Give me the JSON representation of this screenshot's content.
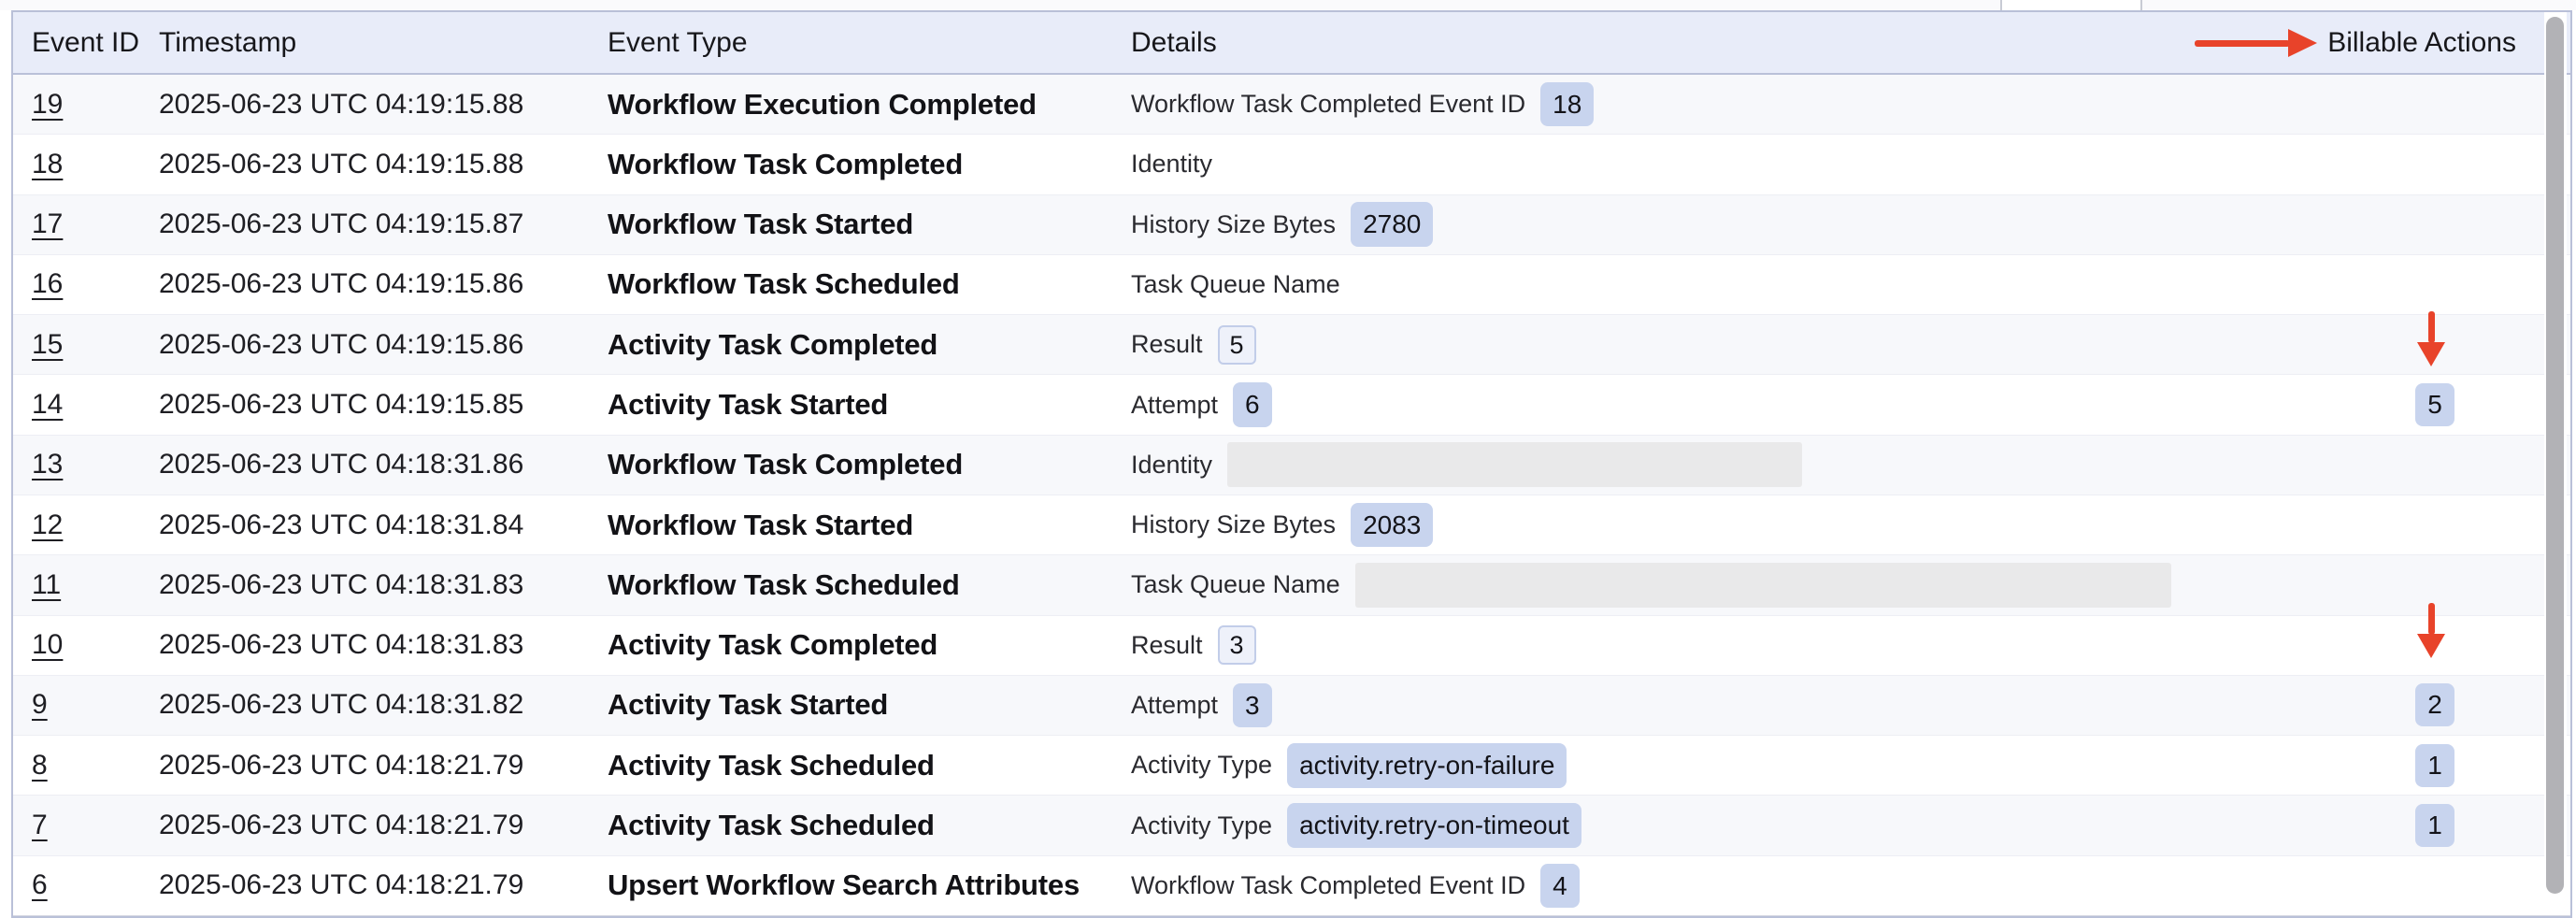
{
  "table": {
    "columns": [
      "Event ID",
      "Timestamp",
      "Event Type",
      "Details",
      "Billable Actions"
    ],
    "rows": [
      {
        "event_id": "19",
        "timestamp": "2025-06-23 UTC 04:19:15.88",
        "event_type": "Workflow Execution Completed",
        "detail_label": "Workflow Task Completed Event ID",
        "detail_value": "18",
        "detail_style": "filled",
        "billable": "",
        "arrow_down": false
      },
      {
        "event_id": "18",
        "timestamp": "2025-06-23 UTC 04:19:15.88",
        "event_type": "Workflow Task Completed",
        "detail_label": "Identity",
        "detail_value": "",
        "detail_style": "none",
        "billable": "",
        "arrow_down": false
      },
      {
        "event_id": "17",
        "timestamp": "2025-06-23 UTC 04:19:15.87",
        "event_type": "Workflow Task Started",
        "detail_label": "History Size Bytes",
        "detail_value": "2780",
        "detail_style": "filled",
        "billable": "",
        "arrow_down": false
      },
      {
        "event_id": "16",
        "timestamp": "2025-06-23 UTC 04:19:15.86",
        "event_type": "Workflow Task Scheduled",
        "detail_label": "Task Queue Name",
        "detail_value": "",
        "detail_style": "none",
        "billable": "",
        "arrow_down": false
      },
      {
        "event_id": "15",
        "timestamp": "2025-06-23 UTC 04:19:15.86",
        "event_type": "Activity Task Completed",
        "detail_label": "Result",
        "detail_value": "5",
        "detail_style": "outlined",
        "billable": "",
        "arrow_down": true
      },
      {
        "event_id": "14",
        "timestamp": "2025-06-23 UTC 04:19:15.85",
        "event_type": "Activity Task Started",
        "detail_label": "Attempt",
        "detail_value": "6",
        "detail_style": "filled",
        "billable": "5",
        "arrow_down": false
      },
      {
        "event_id": "13",
        "timestamp": "2025-06-23 UTC 04:18:31.86",
        "event_type": "Workflow Task Completed",
        "detail_label": "Identity",
        "detail_value": "",
        "detail_style": "redacted",
        "redacted_width": 615,
        "billable": "",
        "arrow_down": false
      },
      {
        "event_id": "12",
        "timestamp": "2025-06-23 UTC 04:18:31.84",
        "event_type": "Workflow Task Started",
        "detail_label": "History Size Bytes",
        "detail_value": "2083",
        "detail_style": "filled",
        "billable": "",
        "arrow_down": false
      },
      {
        "event_id": "11",
        "timestamp": "2025-06-23 UTC 04:18:31.83",
        "event_type": "Workflow Task Scheduled",
        "detail_label": "Task Queue Name",
        "detail_value": "",
        "detail_style": "redacted",
        "redacted_width": 873,
        "billable": "",
        "arrow_down": false
      },
      {
        "event_id": "10",
        "timestamp": "2025-06-23 UTC 04:18:31.83",
        "event_type": "Activity Task Completed",
        "detail_label": "Result",
        "detail_value": "3",
        "detail_style": "outlined",
        "billable": "",
        "arrow_down": true
      },
      {
        "event_id": "9",
        "timestamp": "2025-06-23 UTC 04:18:31.82",
        "event_type": "Activity Task Started",
        "detail_label": "Attempt",
        "detail_value": "3",
        "detail_style": "filled",
        "billable": "2",
        "arrow_down": false
      },
      {
        "event_id": "8",
        "timestamp": "2025-06-23 UTC 04:18:21.79",
        "event_type": "Activity Task Scheduled",
        "detail_label": "Activity Type",
        "detail_value": "activity.retry-on-failure",
        "detail_style": "filled",
        "billable": "1",
        "arrow_down": false
      },
      {
        "event_id": "7",
        "timestamp": "2025-06-23 UTC 04:18:21.79",
        "event_type": "Activity Task Scheduled",
        "detail_label": "Activity Type",
        "detail_value": "activity.retry-on-timeout",
        "detail_style": "filled",
        "billable": "1",
        "arrow_down": false
      },
      {
        "event_id": "6",
        "timestamp": "2025-06-23 UTC 04:18:21.79",
        "event_type": "Upsert Workflow Search Attributes",
        "detail_label": "Workflow Task Completed Event ID",
        "detail_value": "4",
        "detail_style": "filled",
        "billable": "",
        "arrow_down": false
      }
    ]
  },
  "colors": {
    "header_bg": "#e8ecf9",
    "zebra_row": "#f7f8fb",
    "badge_fill": "#c8d4ee",
    "badge_outline_bg": "#eef1fa",
    "badge_outline_border": "#c2cde9",
    "redaction_gray": "#e9e9ea",
    "annotation_arrow_red": "#e8432a",
    "table_border": "#b9c0d8"
  }
}
